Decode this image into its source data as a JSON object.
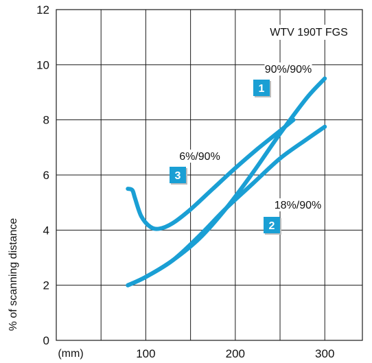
{
  "chart_data": {
    "type": "line",
    "title": "WTV 190T FGS",
    "xlabel": "(mm)",
    "ylabel": "% of scanning distance",
    "xlim": [
      0,
      342
    ],
    "ylim": [
      0,
      12
    ],
    "x_ticks": [
      "100",
      "200",
      "300"
    ],
    "y_ticks": [
      "0",
      "2",
      "4",
      "6",
      "8",
      "10",
      "12"
    ],
    "grid": true,
    "colors": {
      "curve": "#1a9fd4",
      "badge": "#1a9fd4"
    },
    "series": [
      {
        "name": "90%/90%",
        "badge": "1",
        "x": [
          80,
          100,
          130,
          160,
          190,
          220,
          250,
          280,
          300
        ],
        "y": [
          2.0,
          2.3,
          2.9,
          3.7,
          4.8,
          6.1,
          7.5,
          8.8,
          9.5
        ]
      },
      {
        "name": "18%/90%",
        "badge": "2",
        "x": [
          80,
          100,
          130,
          160,
          190,
          220,
          250,
          280,
          300
        ],
        "y": [
          2.0,
          2.3,
          2.9,
          3.8,
          4.8,
          5.7,
          6.6,
          7.3,
          7.75
        ]
      },
      {
        "name": "6%/90%",
        "badge": "3",
        "x": [
          80,
          85,
          88,
          95,
          105,
          115,
          130,
          150,
          175,
          200,
          225,
          250,
          265
        ],
        "y": [
          5.5,
          5.45,
          5.15,
          4.5,
          4.12,
          4.05,
          4.25,
          4.75,
          5.5,
          6.25,
          6.95,
          7.6,
          8.0
        ]
      }
    ]
  }
}
